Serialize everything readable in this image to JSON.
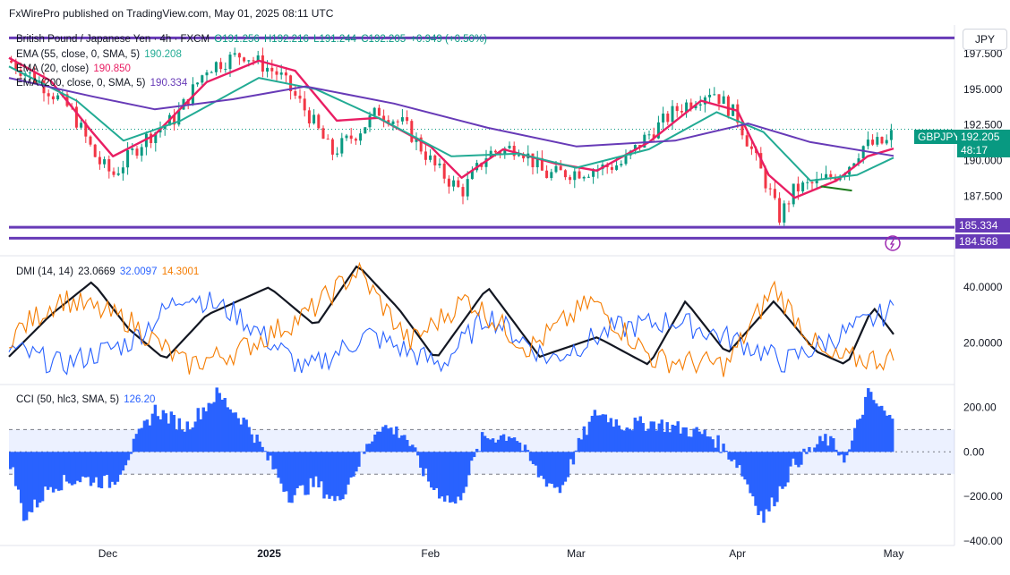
{
  "header": {
    "published": "FxWirePro published on TradingView.com, May 01, 2025 08:11 UTC"
  },
  "currency_button": "JPY",
  "legend": {
    "symbol_line": "British Pound / Japanese Yen · 4h · FXCM",
    "ohlc": {
      "o": "O191.256",
      "h": "H192.216",
      "l": "L191.244",
      "c": "C192.205",
      "chg": "+0.949 (+0.50%)"
    },
    "ema55": {
      "label": "EMA (55, close, 0, SMA, 5)",
      "value": "190.208"
    },
    "ema20": {
      "label": "EMA (20, close)",
      "value": "190.850"
    },
    "ema200": {
      "label": "EMA (200, close, 0, SMA, 5)",
      "value": "190.334"
    },
    "dmi": {
      "label": "DMI (14, 14)",
      "adx": "23.0669",
      "plus": "32.0097",
      "minus": "14.3001"
    },
    "cci": {
      "label": "CCI (50, hlc3, SMA, 5)",
      "value": "126.20"
    }
  },
  "price_tags": {
    "symbol": "GBPJPY",
    "last": "192.205",
    "countdown": "48:17",
    "level_upper": "185.334",
    "level_lower": "184.568"
  },
  "colors": {
    "bull": "#089981",
    "bear": "#f23645",
    "ema20": "#e91e63",
    "ema55": "#22ab94",
    "ema200": "#673ab7",
    "purple_line": "#673ab7",
    "adx": "#131722",
    "diplus": "#2962ff",
    "diminus": "#f57c00",
    "cci": "#2962ff",
    "band": "#2962ff",
    "green_trend": "#1b7a1b"
  },
  "chart_data": [
    {
      "type": "candlestick",
      "title": "British Pound / Japanese Yen · 4h · FXCM",
      "x_ticks": [
        "Dec",
        "2025",
        "Feb",
        "Mar",
        "Apr",
        "May"
      ],
      "y_ticks": [
        "197.500",
        "195.000",
        "192.500",
        "190.000",
        "187.500"
      ],
      "ylim": [
        183.9,
        199.5
      ],
      "horizontal_levels": [
        198.6,
        185.334,
        184.568
      ],
      "ohlc_summary": {
        "open": 191.256,
        "high": 192.216,
        "low": 191.244,
        "close": 192.205
      },
      "price_path": [
        {
          "date": "2024-11-12",
          "price": 197.0
        },
        {
          "date": "2024-11-18",
          "price": 195.5
        },
        {
          "date": "2024-11-24",
          "price": 193.5
        },
        {
          "date": "2024-11-29",
          "price": 190.0
        },
        {
          "date": "2024-12-02",
          "price": 189.0
        },
        {
          "date": "2024-12-08",
          "price": 191.5
        },
        {
          "date": "2024-12-14",
          "price": 193.0
        },
        {
          "date": "2024-12-20",
          "price": 196.5
        },
        {
          "date": "2024-12-27",
          "price": 197.5
        },
        {
          "date": "2025-01-03",
          "price": 196.0
        },
        {
          "date": "2025-01-09",
          "price": 193.0
        },
        {
          "date": "2025-01-13",
          "price": 190.5
        },
        {
          "date": "2025-01-18",
          "price": 192.0
        },
        {
          "date": "2025-01-22",
          "price": 193.5
        },
        {
          "date": "2025-01-27",
          "price": 192.5
        },
        {
          "date": "2025-02-02",
          "price": 189.5
        },
        {
          "date": "2025-02-07",
          "price": 187.8
        },
        {
          "date": "2025-02-12",
          "price": 190.5
        },
        {
          "date": "2025-02-18",
          "price": 191.0
        },
        {
          "date": "2025-02-23",
          "price": 189.0
        },
        {
          "date": "2025-03-03",
          "price": 189.3
        },
        {
          "date": "2025-03-10",
          "price": 189.8
        },
        {
          "date": "2025-03-14",
          "price": 191.5
        },
        {
          "date": "2025-03-20",
          "price": 193.5
        },
        {
          "date": "2025-03-27",
          "price": 195.0
        },
        {
          "date": "2025-04-01",
          "price": 193.0
        },
        {
          "date": "2025-04-04",
          "price": 190.5
        },
        {
          "date": "2025-04-07",
          "price": 188.0
        },
        {
          "date": "2025-04-09",
          "price": 186.0
        },
        {
          "date": "2025-04-12",
          "price": 188.0
        },
        {
          "date": "2025-04-17",
          "price": 188.5
        },
        {
          "date": "2025-04-22",
          "price": 189.5
        },
        {
          "date": "2025-04-25",
          "price": 191.0
        },
        {
          "date": "2025-04-30",
          "price": 191.3
        },
        {
          "date": "2025-05-01",
          "price": 192.2
        }
      ],
      "series": [
        {
          "name": "EMA (20, close)",
          "values": [
            {
              "date": "2024-11-12",
              "y": 197.2
            },
            {
              "date": "2024-11-20",
              "y": 195.6
            },
            {
              "date": "2024-11-28",
              "y": 192.0
            },
            {
              "date": "2024-12-02",
              "y": 190.3
            },
            {
              "date": "2024-12-10",
              "y": 191.8
            },
            {
              "date": "2024-12-20",
              "y": 195.5
            },
            {
              "date": "2024-12-30",
              "y": 197.0
            },
            {
              "date": "2025-01-06",
              "y": 196.3
            },
            {
              "date": "2025-01-14",
              "y": 192.8
            },
            {
              "date": "2025-01-22",
              "y": 193.0
            },
            {
              "date": "2025-02-01",
              "y": 191.0
            },
            {
              "date": "2025-02-07",
              "y": 188.8
            },
            {
              "date": "2025-02-15",
              "y": 190.8
            },
            {
              "date": "2025-02-25",
              "y": 189.8
            },
            {
              "date": "2025-03-05",
              "y": 189.3
            },
            {
              "date": "2025-03-15",
              "y": 191.3
            },
            {
              "date": "2025-03-25",
              "y": 194.2
            },
            {
              "date": "2025-04-01",
              "y": 193.5
            },
            {
              "date": "2025-04-07",
              "y": 189.0
            },
            {
              "date": "2025-04-12",
              "y": 187.4
            },
            {
              "date": "2025-04-20",
              "y": 188.6
            },
            {
              "date": "2025-04-26",
              "y": 190.3
            },
            {
              "date": "2025-05-01",
              "y": 190.85
            }
          ]
        },
        {
          "name": "EMA (55, close, 0, SMA, 5)",
          "values": [
            {
              "date": "2024-11-12",
              "y": 196.6
            },
            {
              "date": "2024-11-25",
              "y": 194.2
            },
            {
              "date": "2024-12-04",
              "y": 191.4
            },
            {
              "date": "2024-12-15",
              "y": 192.8
            },
            {
              "date": "2024-12-30",
              "y": 195.8
            },
            {
              "date": "2025-01-10",
              "y": 195.0
            },
            {
              "date": "2025-01-22",
              "y": 193.0
            },
            {
              "date": "2025-02-05",
              "y": 190.3
            },
            {
              "date": "2025-02-18",
              "y": 190.5
            },
            {
              "date": "2025-03-01",
              "y": 189.5
            },
            {
              "date": "2025-03-15",
              "y": 190.8
            },
            {
              "date": "2025-03-28",
              "y": 193.4
            },
            {
              "date": "2025-04-06",
              "y": 192.0
            },
            {
              "date": "2025-04-15",
              "y": 188.6
            },
            {
              "date": "2025-04-24",
              "y": 189.0
            },
            {
              "date": "2025-05-01",
              "y": 190.208
            }
          ]
        },
        {
          "name": "EMA (200, close, 0, SMA, 5)",
          "values": [
            {
              "date": "2024-11-12",
              "y": 195.8
            },
            {
              "date": "2024-11-28",
              "y": 194.5
            },
            {
              "date": "2024-12-10",
              "y": 193.6
            },
            {
              "date": "2024-12-25",
              "y": 194.3
            },
            {
              "date": "2025-01-08",
              "y": 195.2
            },
            {
              "date": "2025-01-25",
              "y": 194.0
            },
            {
              "date": "2025-02-12",
              "y": 192.3
            },
            {
              "date": "2025-03-01",
              "y": 191.0
            },
            {
              "date": "2025-03-20",
              "y": 191.4
            },
            {
              "date": "2025-04-03",
              "y": 192.6
            },
            {
              "date": "2025-04-15",
              "y": 191.3
            },
            {
              "date": "2025-05-01",
              "y": 190.334
            }
          ]
        }
      ]
    },
    {
      "type": "line",
      "title": "DMI (14, 14)",
      "y_ticks": [
        "40.0000",
        "20.0000"
      ],
      "ylim": [
        5,
        50
      ],
      "series": [
        {
          "name": "ADX",
          "last": 23.0669,
          "values": [
            {
              "date": "2024-11-12",
              "y": 15
            },
            {
              "date": "2024-11-20",
              "y": 30
            },
            {
              "date": "2024-11-28",
              "y": 42
            },
            {
              "date": "2024-12-05",
              "y": 25
            },
            {
              "date": "2024-12-12",
              "y": 14
            },
            {
              "date": "2024-12-20",
              "y": 30
            },
            {
              "date": "2025-01-01",
              "y": 40
            },
            {
              "date": "2025-01-10",
              "y": 26
            },
            {
              "date": "2025-01-18",
              "y": 48
            },
            {
              "date": "2025-01-26",
              "y": 32
            },
            {
              "date": "2025-02-02",
              "y": 14
            },
            {
              "date": "2025-02-12",
              "y": 40
            },
            {
              "date": "2025-02-22",
              "y": 15
            },
            {
              "date": "2025-03-05",
              "y": 22
            },
            {
              "date": "2025-03-15",
              "y": 12
            },
            {
              "date": "2025-03-22",
              "y": 35
            },
            {
              "date": "2025-03-30",
              "y": 16
            },
            {
              "date": "2025-04-08",
              "y": 35
            },
            {
              "date": "2025-04-16",
              "y": 17
            },
            {
              "date": "2025-04-22",
              "y": 12
            },
            {
              "date": "2025-04-27",
              "y": 33
            },
            {
              "date": "2025-05-01",
              "y": 23.07
            }
          ]
        },
        {
          "name": "+DI",
          "last": 32.0097,
          "values": [
            {
              "date": "2024-11-12",
              "y": 18
            },
            {
              "date": "2024-11-22",
              "y": 12
            },
            {
              "date": "2024-12-05",
              "y": 20
            },
            {
              "date": "2024-12-16",
              "y": 38
            },
            {
              "date": "2024-12-26",
              "y": 30
            },
            {
              "date": "2025-01-08",
              "y": 10
            },
            {
              "date": "2025-01-20",
              "y": 23
            },
            {
              "date": "2025-02-03",
              "y": 12
            },
            {
              "date": "2025-02-12",
              "y": 30
            },
            {
              "date": "2025-02-24",
              "y": 14
            },
            {
              "date": "2025-03-08",
              "y": 25
            },
            {
              "date": "2025-03-20",
              "y": 28
            },
            {
              "date": "2025-04-02",
              "y": 20
            },
            {
              "date": "2025-04-10",
              "y": 13
            },
            {
              "date": "2025-04-20",
              "y": 22
            },
            {
              "date": "2025-05-01",
              "y": 32.01
            }
          ]
        },
        {
          "name": "-DI",
          "last": 14.3001,
          "values": [
            {
              "date": "2024-11-12",
              "y": 22
            },
            {
              "date": "2024-11-22",
              "y": 36
            },
            {
              "date": "2024-12-05",
              "y": 28
            },
            {
              "date": "2024-12-16",
              "y": 12
            },
            {
              "date": "2024-12-26",
              "y": 17
            },
            {
              "date": "2025-01-08",
              "y": 30
            },
            {
              "date": "2025-01-18",
              "y": 46
            },
            {
              "date": "2025-01-28",
              "y": 20
            },
            {
              "date": "2025-02-08",
              "y": 36
            },
            {
              "date": "2025-02-20",
              "y": 18
            },
            {
              "date": "2025-03-04",
              "y": 35
            },
            {
              "date": "2025-03-16",
              "y": 14
            },
            {
              "date": "2025-03-30",
              "y": 12
            },
            {
              "date": "2025-04-08",
              "y": 40
            },
            {
              "date": "2025-04-18",
              "y": 14
            },
            {
              "date": "2025-05-01",
              "y": 14.3
            }
          ]
        }
      ]
    },
    {
      "type": "bar",
      "title": "CCI (50, hlc3, SMA, 5)",
      "y_ticks": [
        "200.00",
        "0.00",
        "−200.00",
        "−400.00"
      ],
      "ylim": [
        -400,
        290
      ],
      "band": [
        -100,
        100
      ],
      "last": 126.2,
      "values": [
        {
          "date": "2024-11-12",
          "y": -20
        },
        {
          "date": "2024-11-15",
          "y": -300
        },
        {
          "date": "2024-11-20",
          "y": -150
        },
        {
          "date": "2024-11-26",
          "y": -120
        },
        {
          "date": "2024-12-02",
          "y": -140
        },
        {
          "date": "2024-12-06",
          "y": 30
        },
        {
          "date": "2024-12-10",
          "y": 190
        },
        {
          "date": "2024-12-16",
          "y": 110
        },
        {
          "date": "2024-12-22",
          "y": 260
        },
        {
          "date": "2024-12-28",
          "y": 120
        },
        {
          "date": "2025-01-01",
          "y": -40
        },
        {
          "date": "2025-01-05",
          "y": -200
        },
        {
          "date": "2025-01-10",
          "y": -140
        },
        {
          "date": "2025-01-14",
          "y": -230
        },
        {
          "date": "2025-01-18",
          "y": -60
        },
        {
          "date": "2025-01-22",
          "y": 120
        },
        {
          "date": "2025-01-27",
          "y": 80
        },
        {
          "date": "2025-02-01",
          "y": -150
        },
        {
          "date": "2025-02-06",
          "y": -240
        },
        {
          "date": "2025-02-11",
          "y": 60
        },
        {
          "date": "2025-02-17",
          "y": 80
        },
        {
          "date": "2025-02-22",
          "y": -110
        },
        {
          "date": "2025-02-26",
          "y": -170
        },
        {
          "date": "2025-03-02",
          "y": 60
        },
        {
          "date": "2025-03-05",
          "y": 180
        },
        {
          "date": "2025-03-10",
          "y": 120
        },
        {
          "date": "2025-03-16",
          "y": 130
        },
        {
          "date": "2025-03-22",
          "y": 100
        },
        {
          "date": "2025-03-27",
          "y": 70
        },
        {
          "date": "2025-04-01",
          "y": -50
        },
        {
          "date": "2025-04-06",
          "y": -300
        },
        {
          "date": "2025-04-12",
          "y": -50
        },
        {
          "date": "2025-04-18",
          "y": 60
        },
        {
          "date": "2025-04-22",
          "y": -30
        },
        {
          "date": "2025-04-26",
          "y": 260
        },
        {
          "date": "2025-05-01",
          "y": 126.2
        }
      ]
    }
  ]
}
